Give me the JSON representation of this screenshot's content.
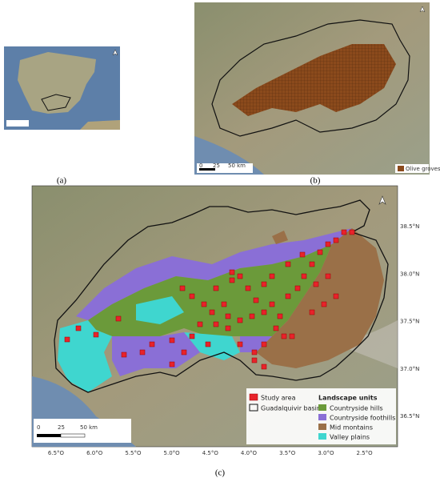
{
  "panels": {
    "a": {
      "label": "(a)"
    },
    "b": {
      "label": "(b)",
      "legend": "Olive groves",
      "scale": [
        "0",
        "25",
        "50 km"
      ]
    },
    "c": {
      "label": "(c)",
      "scale": [
        "0",
        "25",
        "50 km"
      ],
      "legend": {
        "study_area": "Study area",
        "basin": "Guadalquivir basin",
        "title": "Landscape units",
        "units": [
          "Countryside hills",
          "Countryside foothills",
          "Mid montains",
          "Valley plains"
        ]
      },
      "lat_ticks": [
        "38.5°N",
        "38.0°N",
        "37.5°N",
        "37.0°N",
        "36.5°N"
      ],
      "lon_ticks": [
        "6.5°O",
        "6.0°O",
        "5.5°O",
        "5.0°O",
        "4.5°O",
        "4.0°O",
        "3.5°O",
        "3.0°O",
        "2.5°O"
      ]
    }
  }
}
